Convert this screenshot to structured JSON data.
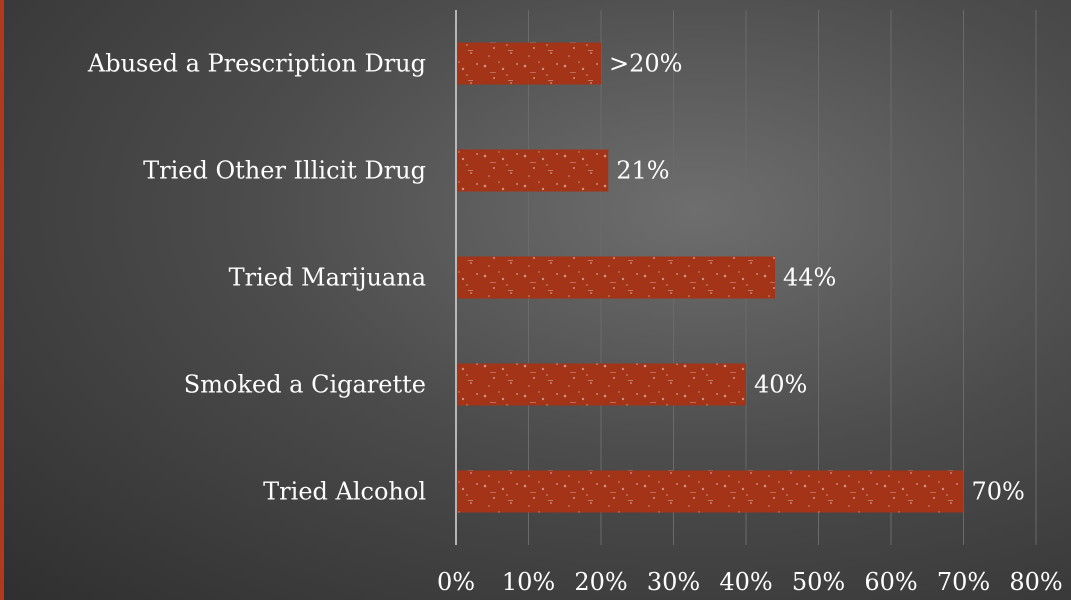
{
  "chart_data": {
    "type": "bar",
    "orientation": "horizontal",
    "categories": [
      "Abused a Prescription Drug",
      "Tried Other Illicit Drug",
      "Tried Marijuana",
      "Smoked a Cigarette",
      "Tried Alcohol"
    ],
    "values": [
      20,
      21,
      44,
      40,
      70
    ],
    "data_labels": [
      ">20%",
      "21%",
      "44%",
      "40%",
      "70%"
    ],
    "xlim": [
      0,
      80
    ],
    "x_ticks": [
      "0%",
      "10%",
      "20%",
      "30%",
      "40%",
      "50%",
      "60%",
      "70%",
      "80%"
    ],
    "grid": true,
    "bar_color": "#a33418",
    "background_color": "#4a4a4a",
    "accent_color": "#b03a1e"
  }
}
